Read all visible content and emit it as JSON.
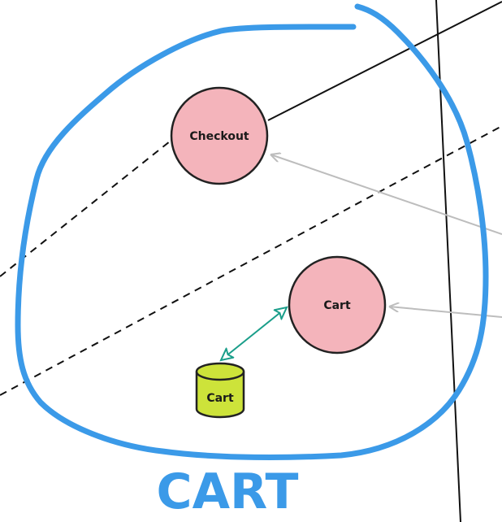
{
  "diagram": {
    "region": {
      "label": "CART",
      "stroke_color": "#3b9ae8",
      "label_color": "#3b9ae8"
    },
    "nodes": [
      {
        "id": "checkout",
        "shape": "circle",
        "label": "Checkout",
        "fill": "#f4b4bb",
        "stroke": "#222222"
      },
      {
        "id": "cart",
        "shape": "circle",
        "label": "Cart",
        "fill": "#f4b4bb",
        "stroke": "#222222"
      },
      {
        "id": "cart-db",
        "shape": "cylinder",
        "label": "Cart",
        "fill": "#cde33a",
        "stroke": "#222222"
      }
    ],
    "edges": [
      {
        "from": "cart",
        "to": "cart-db",
        "style": "double-arrow",
        "color": "#1a9e8a"
      },
      {
        "from": "external",
        "to": "checkout",
        "style": "arrow",
        "color": "#bdbdbd"
      },
      {
        "from": "external",
        "to": "cart",
        "style": "arrow",
        "color": "#bdbdbd"
      }
    ],
    "lines": [
      {
        "style": "solid",
        "color": "#111111"
      },
      {
        "style": "dashed",
        "color": "#111111"
      }
    ]
  }
}
